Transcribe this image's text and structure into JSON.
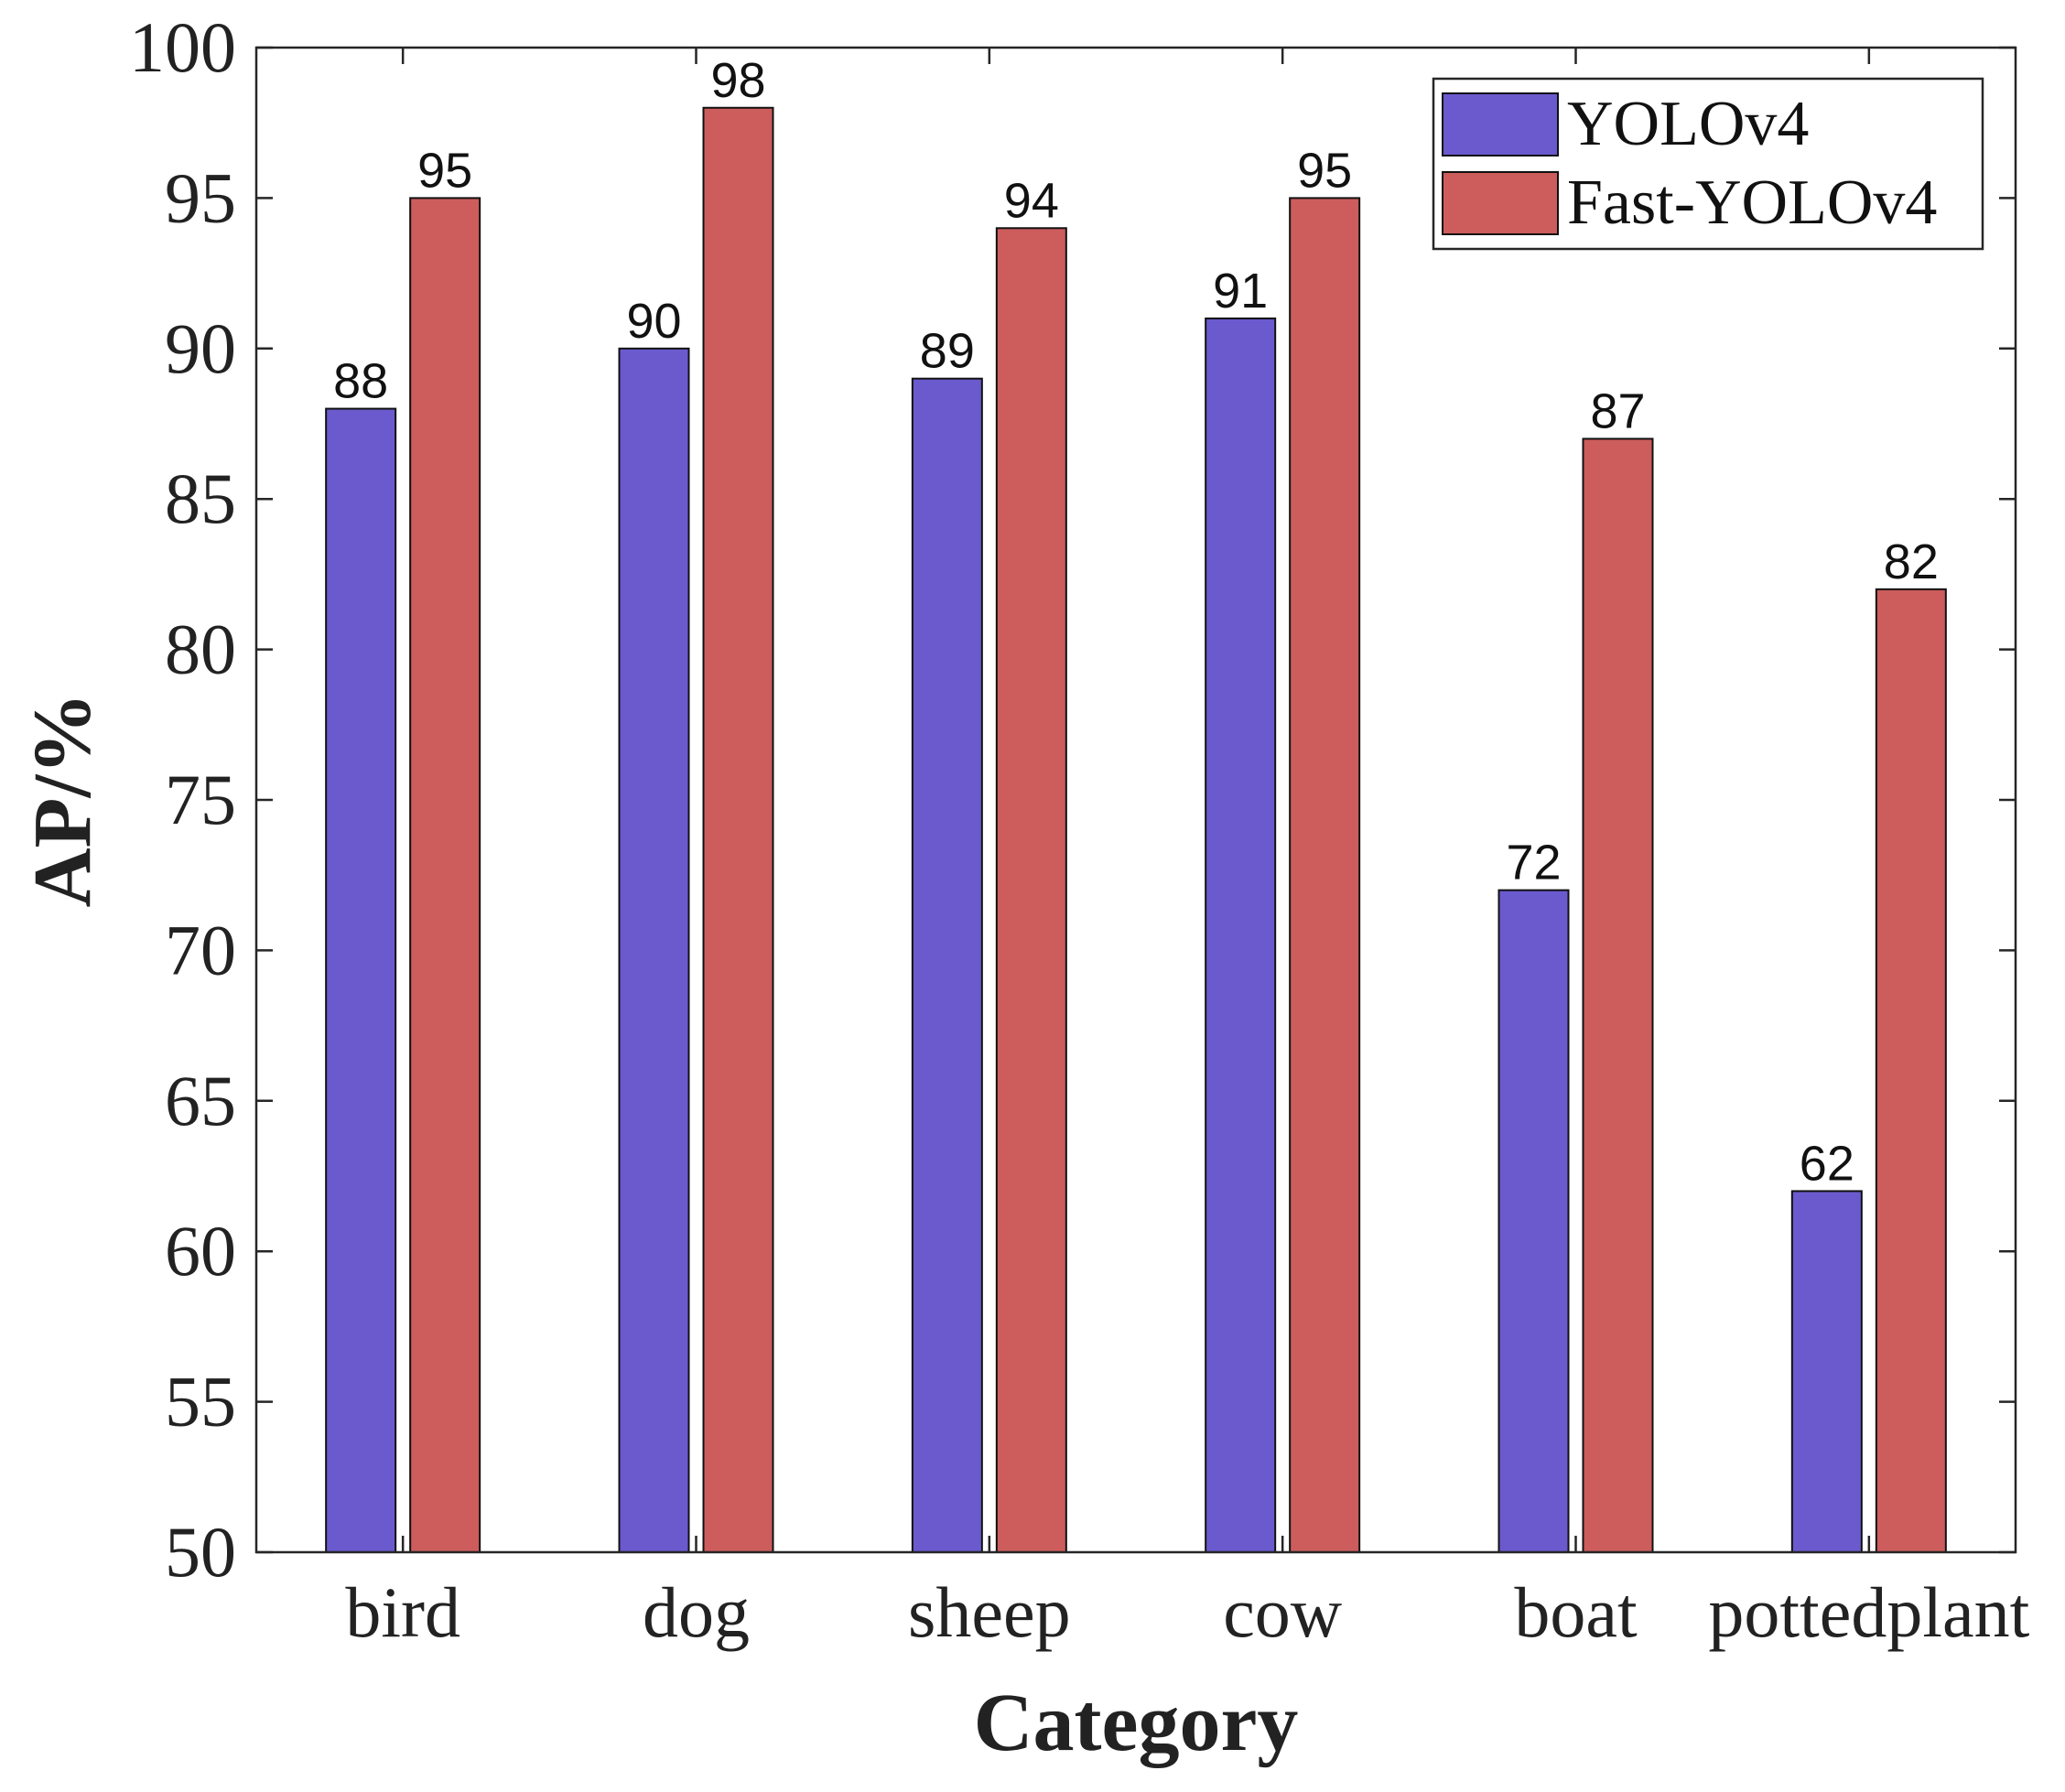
{
  "chart_data": {
    "type": "bar",
    "title": "",
    "xlabel": "Category",
    "ylabel": "AP/%",
    "ylim": [
      50,
      100
    ],
    "yticks": [
      50,
      55,
      60,
      65,
      70,
      75,
      80,
      85,
      90,
      95,
      100
    ],
    "categories": [
      "bird",
      "dog",
      "sheep",
      "cow",
      "boat",
      "pottedplant"
    ],
    "series": [
      {
        "name": "YOLOv4",
        "color": "#6a5acd",
        "values": [
          88,
          90,
          89,
          91,
          72,
          62
        ]
      },
      {
        "name": "Fast-YOLOv4",
        "color": "#cd5c5c",
        "values": [
          95,
          98,
          94,
          95,
          87,
          82
        ]
      }
    ],
    "grid": false,
    "legend": "top-right",
    "data_labels": true
  }
}
